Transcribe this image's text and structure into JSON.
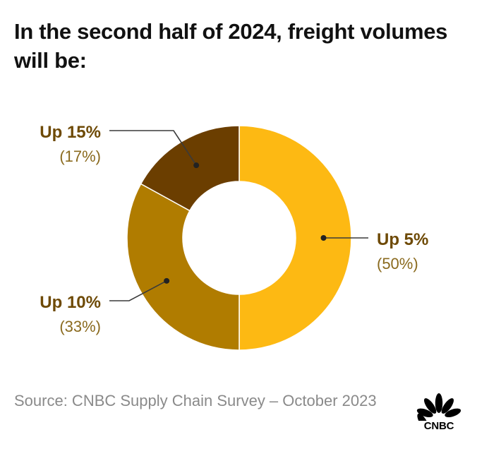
{
  "title": "In the second half of 2024, freight volumes will be:",
  "source": "Source: CNBC Supply Chain Survey – October 2023",
  "logo": {
    "wordmark": "CNBC",
    "icon": "nbc-peacock-icon"
  },
  "colors": {
    "label_text": "#6e4a06",
    "percent_text": "#8a6a1e",
    "leader_line": "#3a3a3a"
  },
  "chart_data": {
    "type": "pie",
    "donut": true,
    "title": "In the second half of 2024, freight volumes will be:",
    "slices": [
      {
        "label": "Up 5%",
        "value": 50,
        "value_label": "(50%)",
        "color": "#fdb913"
      },
      {
        "label": "Up 10%",
        "value": 33,
        "value_label": "(33%)",
        "color": "#b07c00"
      },
      {
        "label": "Up 15%",
        "value": 17,
        "value_label": "(17%)",
        "color": "#6b3e00"
      }
    ]
  }
}
